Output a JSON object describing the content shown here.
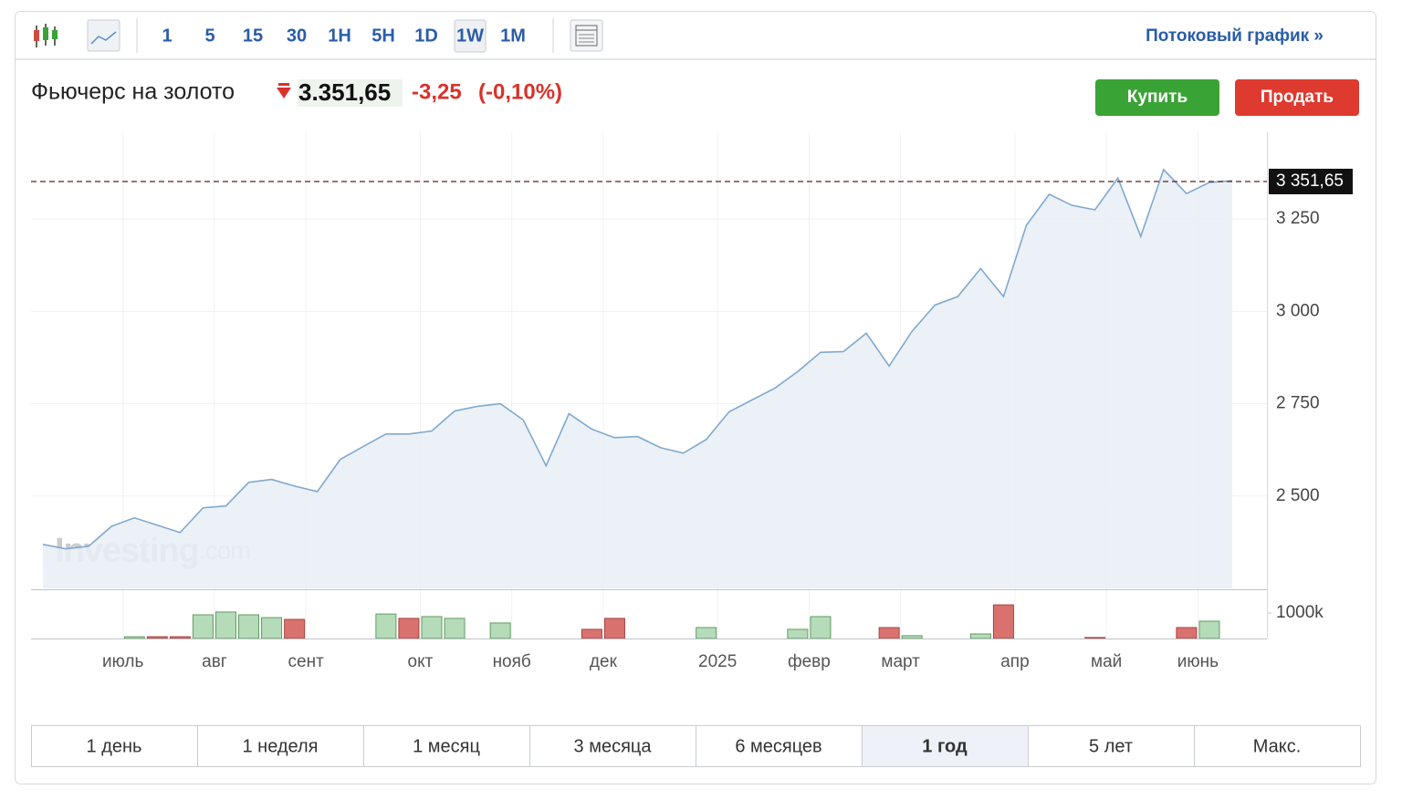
{
  "toolbar": {
    "intervals": [
      "1",
      "5",
      "15",
      "30",
      "1H",
      "5H",
      "1D",
      "1W",
      "1M"
    ],
    "active_interval": 7,
    "stream_link": "Потоковый график »"
  },
  "header": {
    "name": "Фьючерс на золото",
    "price": "3.351,65",
    "change": "-3,25",
    "change_pct": "(-0,10%)",
    "buy": "Купить",
    "sell": "Продать"
  },
  "chart_data": {
    "type": "line",
    "color": "#7fa9cf",
    "fill": "#e9eef6",
    "values": [
      2369,
      2357,
      2364,
      2418,
      2441,
      2421,
      2401,
      2468,
      2473,
      2537,
      2545,
      2527,
      2512,
      2599,
      2634,
      2668,
      2668,
      2676,
      2730,
      2743,
      2750,
      2706,
      2582,
      2723,
      2681,
      2658,
      2661,
      2631,
      2616,
      2653,
      2728,
      2760,
      2792,
      2837,
      2889,
      2891,
      2941,
      2852,
      2946,
      3017,
      3040,
      3116,
      3040,
      3233,
      3317,
      3287,
      3275,
      3361,
      3203,
      3384,
      3319,
      3349,
      3354
    ],
    "xlim": [
      0,
      52
    ],
    "xticks": [
      {
        "value": 3.5,
        "label": "июль"
      },
      {
        "value": 7.5,
        "label": "авг"
      },
      {
        "value": 11.5,
        "label": "сент"
      },
      {
        "value": 16.5,
        "label": "окт"
      },
      {
        "value": 20.5,
        "label": "нояб"
      },
      {
        "value": 24.5,
        "label": "дек"
      },
      {
        "value": 29.5,
        "label": "2025"
      },
      {
        "value": 33.5,
        "label": "февр"
      },
      {
        "value": 37.5,
        "label": "март"
      },
      {
        "value": 42.5,
        "label": "апр"
      },
      {
        "value": 46.5,
        "label": "май"
      },
      {
        "value": 50.5,
        "label": "июнь"
      }
    ],
    "ylim": [
      2250,
      3485
    ],
    "yticks": [
      {
        "value": 2500,
        "label": "2 500"
      },
      {
        "value": 2750,
        "label": "2 750"
      },
      {
        "value": 3000,
        "label": "3 000"
      },
      {
        "value": 3250,
        "label": "3 250"
      }
    ],
    "last_price": {
      "value": 3351.65,
      "label": "3 351,65"
    },
    "volume": {
      "values": [
        null,
        null,
        null,
        null,
        70,
        70,
        70,
        930,
        1040,
        930,
        820,
        750,
        null,
        null,
        null,
        960,
        790,
        860,
        790,
        null,
        610,
        null,
        null,
        null,
        360,
        790,
        null,
        null,
        null,
        430,
        null,
        null,
        null,
        360,
        860,
        null,
        null,
        430,
        110,
        null,
        null,
        180,
        1320,
        null,
        null,
        null,
        40,
        null,
        null,
        null,
        430,
        680,
        null
      ],
      "colors": [
        null,
        null,
        null,
        null,
        "#b5dbb8",
        "#d9726e",
        "#d9726e",
        "#b5dbb8",
        "#b5dbb8",
        "#b5dbb8",
        "#b5dbb8",
        "#d9726e",
        null,
        null,
        null,
        "#b5dbb8",
        "#d9726e",
        "#b5dbb8",
        "#b5dbb8",
        null,
        "#b5dbb8",
        null,
        null,
        null,
        "#d9726e",
        "#d9726e",
        null,
        null,
        null,
        "#b5dbb8",
        null,
        null,
        null,
        "#b5dbb8",
        "#b5dbb8",
        null,
        null,
        "#d9726e",
        "#b5dbb8",
        null,
        null,
        "#b5dbb8",
        "#d9726e",
        null,
        null,
        null,
        "#d9726e",
        null,
        null,
        null,
        "#d9726e",
        "#b5dbb8",
        null
      ],
      "y2lim": [
        0,
        1860
      ],
      "y2ticks": [
        {
          "value": 1000,
          "label": "1000k"
        }
      ]
    },
    "watermark": [
      "Investing",
      ".com"
    ]
  },
  "ranges": {
    "labels": [
      "1 день",
      "1 неделя",
      "1 месяц",
      "3 месяца",
      "6 месяцев",
      "1 год",
      "5 лет",
      "Макс."
    ],
    "active": 5
  }
}
